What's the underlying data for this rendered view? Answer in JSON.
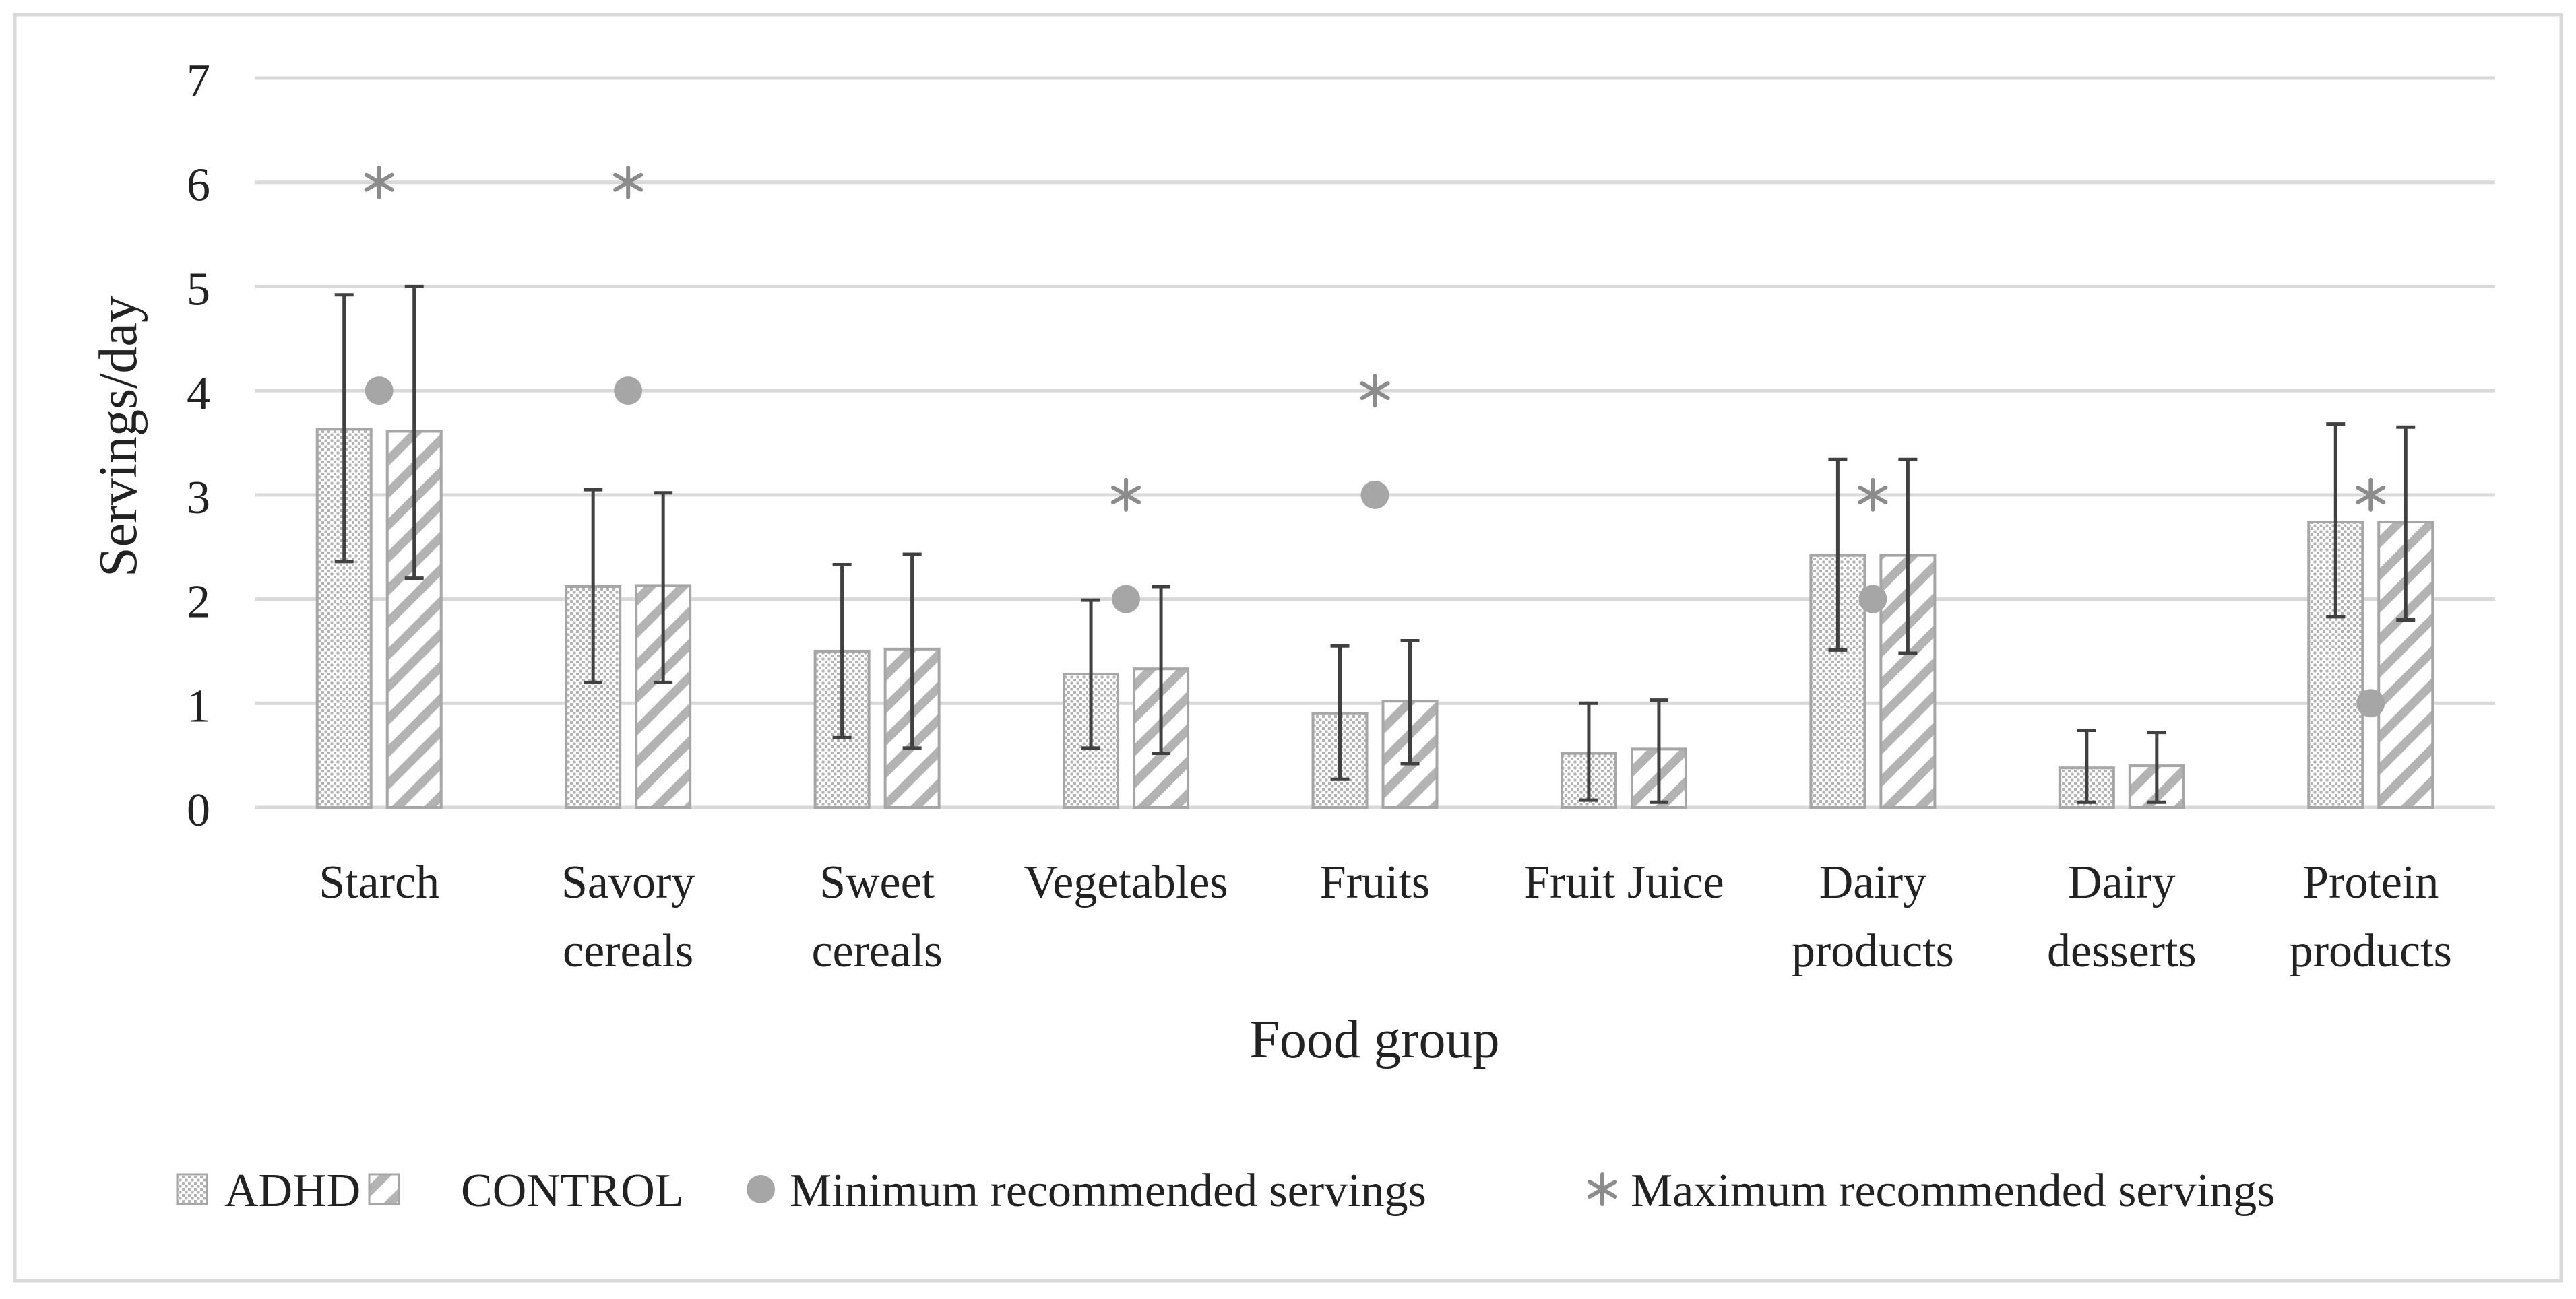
{
  "chart_data": {
    "type": "bar",
    "title": "",
    "xlabel": "Food group",
    "ylabel": "Servings/day",
    "ylim": [
      0,
      7
    ],
    "yticks": [
      0,
      1,
      2,
      3,
      4,
      5,
      6,
      7
    ],
    "grid": true,
    "legend_position": "bottom",
    "categories": [
      [
        "Starch"
      ],
      [
        "Savory",
        "cereals"
      ],
      [
        "Sweet",
        "cereals"
      ],
      [
        "Vegetables"
      ],
      [
        "Fruits"
      ],
      [
        "Fruit Juice"
      ],
      [
        "Dairy",
        "products"
      ],
      [
        "Dairy",
        "desserts"
      ],
      [
        "Protein",
        "products"
      ]
    ],
    "series": [
      {
        "name": "ADHD",
        "pattern": "dotted",
        "values": [
          3.63,
          2.12,
          1.5,
          1.28,
          0.9,
          0.52,
          2.42,
          0.38,
          2.74
        ],
        "error_low": [
          2.36,
          1.2,
          0.67,
          0.57,
          0.27,
          0.07,
          1.51,
          0.05,
          1.83
        ],
        "error_high": [
          4.92,
          3.05,
          2.33,
          1.99,
          1.55,
          1.0,
          3.34,
          0.74,
          3.68
        ]
      },
      {
        "name": "CONTROL",
        "pattern": "diagonal",
        "values": [
          3.61,
          2.13,
          1.52,
          1.33,
          1.02,
          0.56,
          2.42,
          0.4,
          2.74
        ],
        "error_low": [
          2.2,
          1.2,
          0.57,
          0.52,
          0.42,
          0.05,
          1.48,
          0.05,
          1.8
        ],
        "error_high": [
          5.0,
          3.02,
          2.43,
          2.12,
          1.6,
          1.03,
          3.34,
          0.72,
          3.65
        ]
      }
    ],
    "markers": [
      {
        "name": "Minimum recommended servings",
        "symbol": "circle",
        "values": [
          4,
          4,
          null,
          2,
          3,
          null,
          2,
          null,
          1
        ]
      },
      {
        "name": "Maximum  recommended servings",
        "symbol": "asterisk",
        "values": [
          6,
          6,
          null,
          3,
          4,
          null,
          3,
          null,
          3
        ]
      }
    ],
    "colors": {
      "bar_pattern": "#b3b3b3",
      "bar_border": "#a6a6a6",
      "error_bar": "#404040",
      "marker": "#a6a6a6",
      "grid": "#d9d9d9",
      "frame": "#d9d9d9"
    }
  }
}
